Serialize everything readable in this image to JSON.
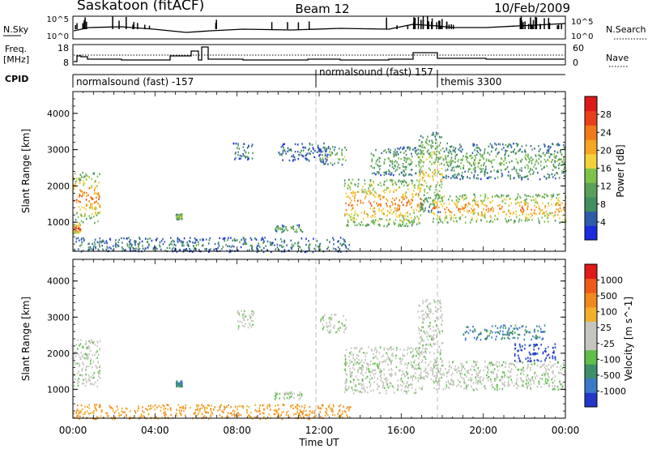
{
  "header": {
    "station": "Saskatoon (fitACF)",
    "beam": "Beam 12",
    "date": "10/Feb/2009"
  },
  "noise_panel": {
    "left_label": "N.Sky",
    "right_label": "N.Search",
    "left_ticks": [
      "10^5",
      "10^0"
    ],
    "right_ticks": [
      "10^5",
      "10^0"
    ]
  },
  "freq_panel": {
    "left_label_1": "Freq.",
    "left_label_2": "[MHz]",
    "right_label": "Nave",
    "left_ticks": [
      "18",
      "8"
    ],
    "right_ticks": [
      "60",
      "0"
    ]
  },
  "cpid_panel": {
    "label": "CPID",
    "modes": [
      {
        "name": "normalsound (fast) -157",
        "start": 0
      },
      {
        "name": "normalsound (fast) 157",
        "start": 12.0
      },
      {
        "name": "themis 3300",
        "start": 18.0
      }
    ]
  },
  "x_axis": {
    "title": "Time UT",
    "ticks": [
      "00:00",
      "04:00",
      "08:00",
      "12:00",
      "16:00",
      "20:00",
      "00:00"
    ]
  },
  "chart_data": [
    {
      "type": "heatmap",
      "name": "power",
      "ylabel": "Slant Range [km]",
      "ylim": [
        200,
        4600
      ],
      "xlim": [
        0,
        24
      ],
      "yticks": [
        "1000",
        "2000",
        "3000",
        "4000"
      ],
      "colorbar_label": "Power [dB]",
      "colorbar_ticks": [
        "28",
        "24",
        "20",
        "16",
        "12",
        "8",
        "4"
      ],
      "colors": [
        "#1a2be0",
        "#2f5ca8",
        "#3f8f5f",
        "#5aa05a",
        "#7fc24a",
        "#f2d23a",
        "#f5a623",
        "#f07a1a",
        "#e8401a",
        "#dd1a1a"
      ],
      "regions": [
        {
          "t": [
            0.0,
            1.3
          ],
          "r": [
            1000,
            2400
          ],
          "level": 0.75
        },
        {
          "t": [
            0.0,
            0.35
          ],
          "r": [
            700,
            1000
          ],
          "level": 0.9
        },
        {
          "t": [
            5.0,
            5.3
          ],
          "r": [
            1100,
            1250
          ],
          "level": 0.5
        },
        {
          "t": [
            7.8,
            8.8
          ],
          "r": [
            2700,
            3200
          ],
          "level": 0.3
        },
        {
          "t": [
            9.8,
            11.2
          ],
          "r": [
            750,
            950
          ],
          "level": 0.4
        },
        {
          "t": [
            10.0,
            12.5
          ],
          "r": [
            2700,
            3200
          ],
          "level": 0.2
        },
        {
          "t": [
            12.0,
            13.3
          ],
          "r": [
            2600,
            3100
          ],
          "level": 0.45
        },
        {
          "t": [
            13.2,
            17.0
          ],
          "r": [
            900,
            2200
          ],
          "level": 0.75
        },
        {
          "t": [
            14.5,
            17.0
          ],
          "r": [
            2300,
            3100
          ],
          "level": 0.4
        },
        {
          "t": [
            16.8,
            18.0
          ],
          "r": [
            1300,
            3500
          ],
          "level": 0.55
        },
        {
          "t": [
            17.5,
            24.0
          ],
          "r": [
            1000,
            1800
          ],
          "level": 0.72
        },
        {
          "t": [
            18.0,
            24.0
          ],
          "r": [
            2200,
            3200
          ],
          "level": 0.4
        },
        {
          "t": [
            0.0,
            13.5
          ],
          "r": [
            200,
            600
          ],
          "level": 0.25
        }
      ]
    },
    {
      "type": "heatmap",
      "name": "velocity",
      "ylabel": "Slant Range [km]",
      "ylim": [
        200,
        4600
      ],
      "xlim": [
        0,
        24
      ],
      "yticks": [
        "1000",
        "2000",
        "3000",
        "4000"
      ],
      "colorbar_label": "Velocity [m s^-1]",
      "colorbar_ticks": [
        "1000",
        "500",
        "100",
        "25",
        "-25",
        "-100",
        "-500",
        "-1000"
      ],
      "colors": [
        "#2236c8",
        "#3a78c8",
        "#3d8f6a",
        "#5fbf4a",
        "#c6c6be",
        "#c6c6be",
        "#f3b02a",
        "#f08a1e",
        "#ee5a1a",
        "#e01a1a"
      ],
      "regions": [
        {
          "t": [
            0.0,
            1.3
          ],
          "r": [
            1100,
            2400
          ],
          "level": 0.45
        },
        {
          "t": [
            5.0,
            5.3
          ],
          "r": [
            1100,
            1250
          ],
          "level": 0.2
        },
        {
          "t": [
            8.0,
            8.8
          ],
          "r": [
            2700,
            3200
          ],
          "level": 0.45
        },
        {
          "t": [
            9.8,
            11.2
          ],
          "r": [
            750,
            950
          ],
          "level": 0.45
        },
        {
          "t": [
            12.0,
            13.3
          ],
          "r": [
            2600,
            3100
          ],
          "level": 0.45
        },
        {
          "t": [
            13.2,
            17.0
          ],
          "r": [
            900,
            2200
          ],
          "level": 0.45
        },
        {
          "t": [
            16.8,
            18.0
          ],
          "r": [
            1300,
            3500
          ],
          "level": 0.45
        },
        {
          "t": [
            17.5,
            24.0
          ],
          "r": [
            1000,
            1800
          ],
          "level": 0.45
        },
        {
          "t": [
            19.0,
            23.0
          ],
          "r": [
            2400,
            2800
          ],
          "level": 0.22
        },
        {
          "t": [
            21.5,
            23.5
          ],
          "r": [
            1800,
            2300
          ],
          "level": 0.05
        },
        {
          "t": [
            0.0,
            13.5
          ],
          "r": [
            200,
            600
          ],
          "level": 0.7
        }
      ]
    }
  ]
}
